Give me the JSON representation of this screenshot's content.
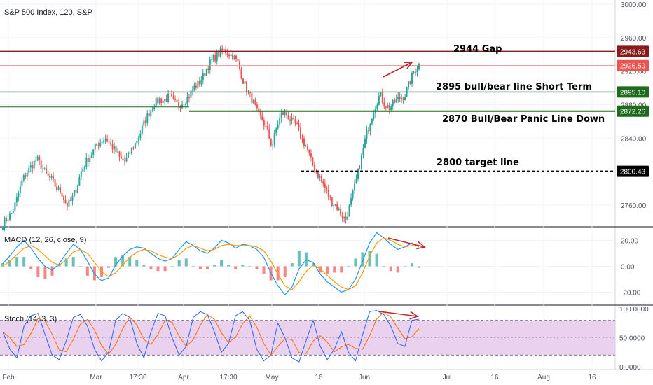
{
  "chart_data": {
    "type": "candlestick",
    "title": "S&P 500 Index, 120, S&P",
    "x_axis_labels": [
      "Feb",
      "Mar",
      "17:30",
      "Apr",
      "17:30",
      "May",
      "16",
      "Jun",
      "Jul",
      "16",
      "Aug",
      "16"
    ],
    "price_pane": {
      "y_ticks": [
        "3000.00",
        "2960.00",
        "2920.00",
        "2880.00",
        "2840.00",
        "2800.00",
        "2760.00"
      ],
      "ylim": [
        2734,
        3005
      ],
      "close_path": [
        2738,
        2745,
        2752,
        2770,
        2790,
        2800,
        2808,
        2815,
        2805,
        2795,
        2790,
        2780,
        2775,
        2760,
        2765,
        2780,
        2800,
        2812,
        2820,
        2830,
        2836,
        2840,
        2832,
        2825,
        2815,
        2812,
        2823,
        2833,
        2845,
        2860,
        2872,
        2882,
        2886,
        2885,
        2890,
        2882,
        2880,
        2884,
        2890,
        2900,
        2905,
        2915,
        2927,
        2935,
        2940,
        2945,
        2942,
        2938,
        2930,
        2910,
        2895,
        2885,
        2870,
        2862,
        2848,
        2830,
        2855,
        2870,
        2868,
        2860,
        2855,
        2840,
        2830,
        2812,
        2800,
        2790,
        2778,
        2765,
        2760,
        2750,
        2742,
        2762,
        2785,
        2810,
        2838,
        2860,
        2878,
        2892,
        2880,
        2876,
        2883,
        2888,
        2890,
        2905,
        2920,
        2928
      ]
    },
    "horizontal_lines": [
      {
        "label": "2944 Gap",
        "value": 2943.63,
        "tag": "2943.63",
        "color": "#8b1a1a"
      },
      {
        "label": "",
        "value": 2926.59,
        "tag": "2926.59",
        "color": "#f08080"
      },
      {
        "label": "2895 bull/bear line Short Term",
        "value": 2895.1,
        "tag": "2895.10",
        "color": "#1e6b1e"
      },
      {
        "label": "2870 Bull/Bear Panic Line Down",
        "value": 2872.26,
        "tag": "2872.26",
        "color": "#1e6b1e"
      },
      {
        "label": "2800 target line",
        "value": 2800.43,
        "tag": "2800.43",
        "color": "#000000"
      }
    ],
    "macd_pane": {
      "title": "MACD (12, 26, close, 9)",
      "y_ticks": [
        "20.00",
        "0.00",
        "-20.00"
      ],
      "ylim": [
        -30,
        30
      ],
      "macd": [
        2,
        8,
        15,
        20,
        14,
        6,
        0,
        -3,
        2,
        10,
        17,
        13,
        4,
        -6,
        -11,
        -9,
        1,
        8,
        13,
        15,
        14,
        10,
        6,
        4,
        6,
        13,
        19,
        16,
        12,
        10,
        14,
        20,
        18,
        14,
        17,
        16,
        13,
        7,
        -5,
        -15,
        -22,
        -16,
        -2,
        5,
        3,
        -6,
        -12,
        -16,
        -20,
        -18,
        -10,
        4,
        18,
        26,
        22,
        17,
        13,
        15,
        18,
        15
      ],
      "signal": [
        0,
        4,
        9,
        14,
        16,
        13,
        8,
        3,
        1,
        5,
        11,
        13,
        10,
        3,
        -4,
        -8,
        -5,
        1,
        7,
        11,
        13,
        12,
        9,
        7,
        6,
        9,
        14,
        16,
        14,
        12,
        13,
        16,
        17,
        16,
        16,
        16,
        15,
        12,
        4,
        -6,
        -15,
        -18,
        -12,
        -4,
        1,
        -2,
        -7,
        -12,
        -16,
        -18,
        -15,
        -5,
        8,
        18,
        22,
        20,
        17,
        15,
        16,
        16
      ]
    },
    "stoch_pane": {
      "title": "Stoch (14, 3, 3)",
      "y_ticks": [
        "100.0000",
        "50.0000",
        "0.0000"
      ],
      "ylim": [
        -5,
        105
      ],
      "band": [
        20,
        80
      ],
      "k": [
        60,
        30,
        15,
        70,
        88,
        92,
        55,
        20,
        12,
        45,
        85,
        90,
        70,
        30,
        10,
        25,
        80,
        92,
        85,
        40,
        15,
        60,
        92,
        88,
        50,
        20,
        35,
        85,
        95,
        90,
        60,
        25,
        40,
        88,
        95,
        80,
        30,
        10,
        20,
        75,
        50,
        15,
        8,
        45,
        80,
        35,
        12,
        30,
        60,
        25,
        10,
        55,
        95,
        97,
        90,
        70,
        40,
        35,
        80,
        82
      ]
    },
    "arrows": [
      {
        "pane": "price",
        "description": "uptrend arrow near 2920-2940"
      },
      {
        "pane": "macd",
        "description": "declining divergence arrow"
      },
      {
        "pane": "stoch",
        "description": "flat divergence arrow near 100"
      }
    ],
    "colors": {
      "up": "#26a69a",
      "down": "#ef5350",
      "macd": "#2196f3",
      "signal": "#ff9800",
      "stoch_k": "#2962ff",
      "stoch_d": "#ff6d00",
      "stoch_band": "#e1bee7"
    }
  }
}
